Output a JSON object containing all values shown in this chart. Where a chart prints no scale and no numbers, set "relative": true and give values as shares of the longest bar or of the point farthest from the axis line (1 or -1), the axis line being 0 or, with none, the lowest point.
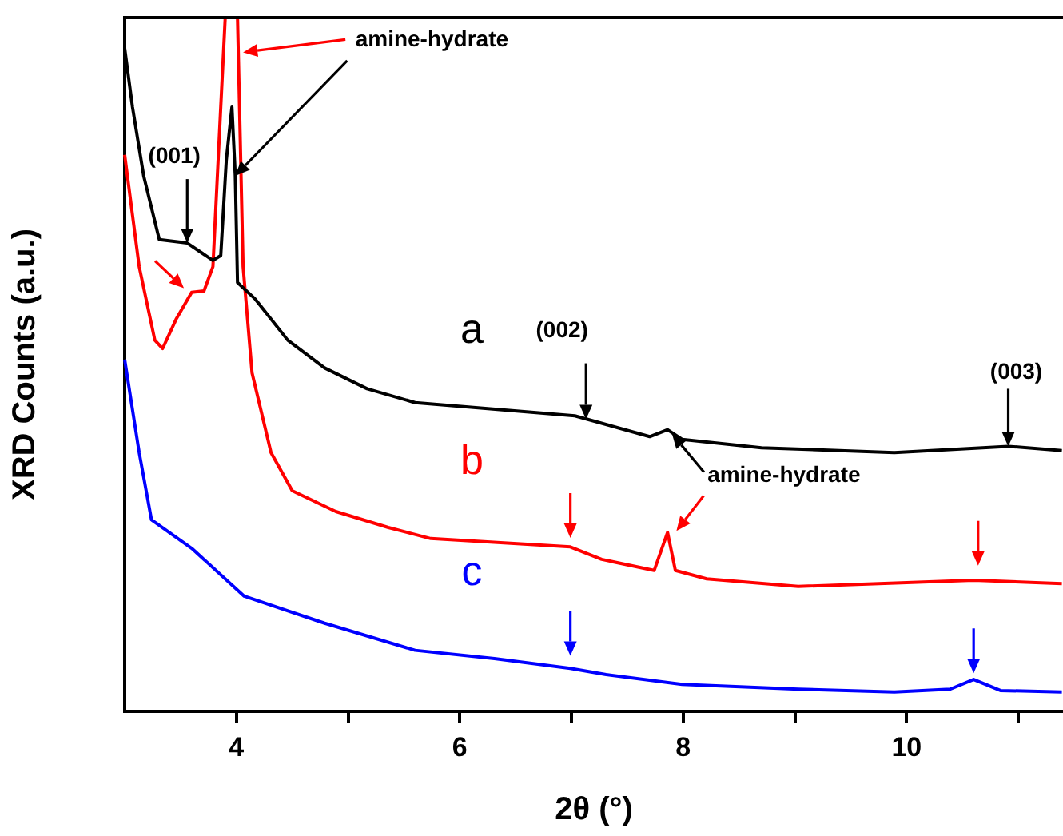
{
  "chart_data": {
    "type": "line",
    "relative": true,
    "xlabel": "2θ (°)",
    "ylabel": "XRD Counts (a.u.)",
    "xlim": [
      3,
      11.4
    ],
    "xticks": [
      4,
      {
        "value": 5,
        "label": null
      },
      6,
      {
        "value": 7,
        "label": null
      },
      8,
      {
        "value": 9,
        "label": null
      },
      10,
      {
        "value": 11,
        "label": null
      }
    ],
    "grid": false,
    "legend": false,
    "marker": "none",
    "line_style": "solid",
    "series": [
      {
        "name": "a",
        "color": "#000000",
        "x": [
          3.0,
          3.07,
          3.17,
          3.31,
          3.56,
          3.79,
          3.86,
          3.91,
          3.96,
          3.99,
          4.01,
          4.17,
          4.46,
          4.79,
          5.17,
          5.6,
          7.03,
          7.7,
          7.86,
          7.99,
          8.7,
          9.89,
          10.91,
          11.39
        ],
        "values": [
          0.956,
          0.871,
          0.772,
          0.68,
          0.675,
          0.65,
          0.657,
          0.795,
          0.871,
          0.772,
          0.618,
          0.594,
          0.535,
          0.495,
          0.465,
          0.445,
          0.426,
          0.396,
          0.406,
          0.392,
          0.38,
          0.373,
          0.382,
          0.376
        ]
      },
      {
        "name": "b",
        "color": "#ff0000",
        "x": [
          3.0,
          3.13,
          3.27,
          3.34,
          3.46,
          3.6,
          3.71,
          3.79,
          3.86,
          3.9,
          4.01,
          4.06,
          4.14,
          4.31,
          4.5,
          4.89,
          5.36,
          5.74,
          6.99,
          7.27,
          7.74,
          7.86,
          7.93,
          8.21,
          9.03,
          10.6,
          11.39
        ],
        "values": [
          0.802,
          0.641,
          0.535,
          0.523,
          0.565,
          0.604,
          0.606,
          0.641,
          0.871,
          1.0,
          1.0,
          0.641,
          0.488,
          0.373,
          0.318,
          0.288,
          0.265,
          0.249,
          0.237,
          0.219,
          0.203,
          0.258,
          0.203,
          0.191,
          0.18,
          0.189,
          0.184
        ]
      },
      {
        "name": "c",
        "color": "#0000ff",
        "x": [
          3.0,
          3.13,
          3.24,
          3.6,
          4.07,
          4.79,
          5.6,
          6.31,
          6.99,
          7.31,
          7.99,
          9.03,
          9.89,
          10.39,
          10.6,
          10.84,
          11.39
        ],
        "values": [
          0.507,
          0.373,
          0.276,
          0.235,
          0.166,
          0.127,
          0.088,
          0.076,
          0.062,
          0.053,
          0.039,
          0.032,
          0.028,
          0.032,
          0.046,
          0.03,
          0.028
        ]
      }
    ],
    "annotations": [
      {
        "text": "(001)",
        "x": 3.56,
        "y": 0.675
      },
      {
        "text": "amine-hydrate",
        "x": 3.99,
        "y": 0.772
      },
      {
        "text": "(002)",
        "x": 7.13,
        "y": 0.421
      },
      {
        "text": "(003)",
        "x": 10.91,
        "y": 0.382
      },
      {
        "text": "amine-hydrate",
        "x": 7.9,
        "y": 0.4
      }
    ]
  }
}
